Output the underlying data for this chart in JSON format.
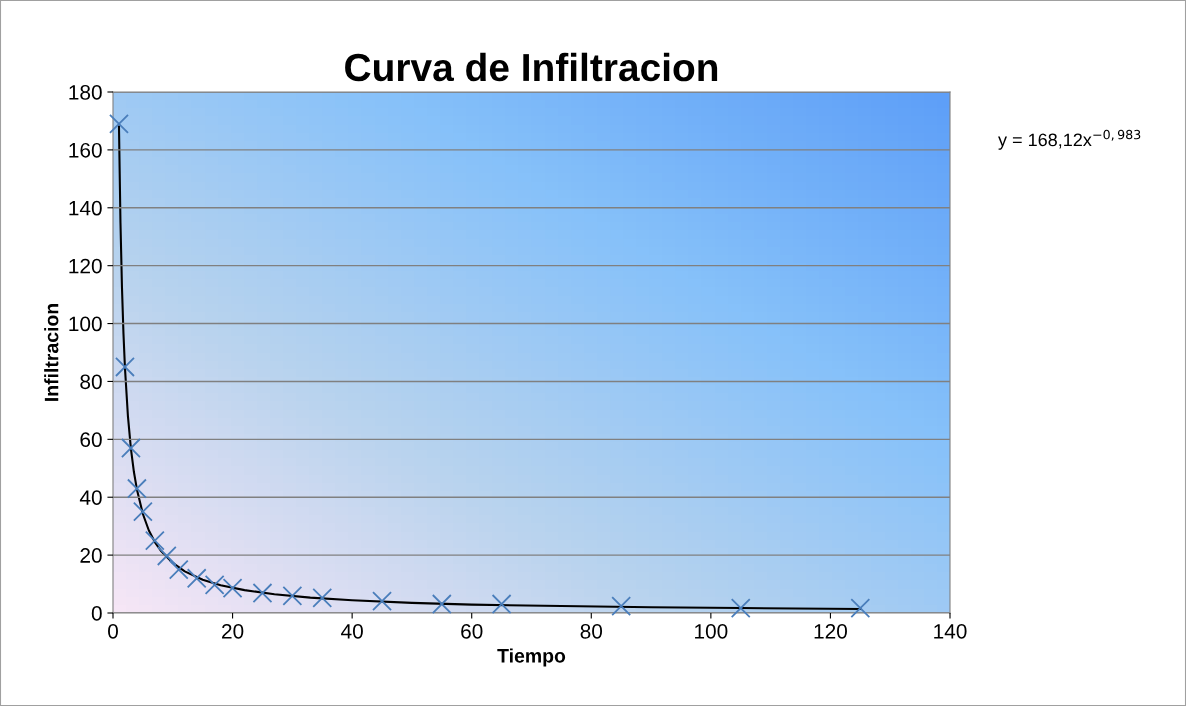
{
  "chart_data": {
    "type": "scatter",
    "title": "Curva de Infiltracion",
    "xlabel": "Tiempo",
    "ylabel": "Infiltracion",
    "xlim": [
      0,
      140
    ],
    "xticks": [
      0,
      20,
      40,
      60,
      80,
      100,
      120,
      140
    ],
    "ylim": [
      0,
      180
    ],
    "yticks": [
      0,
      20,
      40,
      60,
      80,
      100,
      120,
      140,
      160,
      180
    ],
    "grid": "y",
    "marker": "cross",
    "series": [
      {
        "color": "#4a7ebb",
        "x": [
          1,
          2,
          3,
          4,
          5,
          7,
          9,
          11,
          14,
          17,
          20,
          25,
          30,
          35,
          45,
          55,
          65,
          85,
          105,
          125
        ],
        "values": [
          169,
          85,
          57,
          43,
          35,
          25,
          19.7,
          15,
          12,
          9.7,
          8.6,
          6.9,
          5.9,
          5.2,
          4.1,
          3.1,
          3.1,
          2.4,
          1.7,
          1.7
        ]
      },
      {
        "type": "line",
        "color": "#000000",
        "marker": "none",
        "x": [
          1,
          1.25,
          1.5,
          1.75,
          2,
          2.5,
          3,
          3.5,
          4,
          5,
          6,
          7,
          8,
          10,
          12,
          15,
          18,
          22,
          27,
          33,
          40,
          50,
          60,
          75,
          90,
          105,
          125
        ],
        "values": [
          168.1,
          134.8,
          112.5,
          96.6,
          84.7,
          67.9,
          56.7,
          48.7,
          42.7,
          34.2,
          28.5,
          24.5,
          21.5,
          17.3,
          14.4,
          11.5,
          9.6,
          7.9,
          6.5,
          5.3,
          4.4,
          3.5,
          2.9,
          2.4,
          2.0,
          1.7,
          1.4
        ]
      }
    ],
    "annotations": [
      {
        "text": "y = 168,12x$^{−0,983}$"
      }
    ]
  }
}
